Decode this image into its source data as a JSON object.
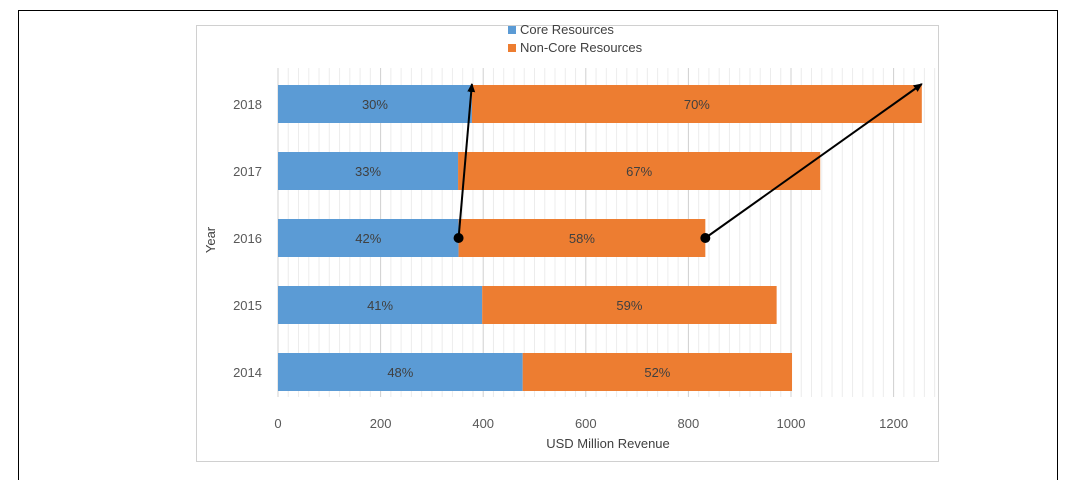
{
  "chart_data": {
    "type": "bar",
    "orientation": "horizontal",
    "stacked": true,
    "categories": [
      "2014",
      "2015",
      "2016",
      "2017",
      "2018"
    ],
    "series": [
      {
        "name": "Core Resources",
        "color": "#5b9bd5",
        "values": [
          477,
          398,
          352,
          351,
          378
        ],
        "labels": [
          "48%",
          "41%",
          "42%",
          "33%",
          "30%"
        ]
      },
      {
        "name": "Non-Core Resources",
        "color": "#ed7d31",
        "values": [
          525,
          574,
          481,
          706,
          877
        ],
        "labels": [
          "52%",
          "59%",
          "58%",
          "67%",
          "70%"
        ]
      }
    ],
    "xlabel": "USD Million Revenue",
    "ylabel": "Year",
    "xlim": [
      0,
      1300
    ],
    "xticks": [
      "0",
      "200",
      "400",
      "600",
      "800",
      "1000",
      "1200"
    ],
    "legend_position": "top",
    "vertical_gridlines": true,
    "annotations": [
      {
        "type": "arrow",
        "from": {
          "category": "2016",
          "x": 352
        },
        "to": {
          "category": "2018",
          "x": 378
        }
      },
      {
        "type": "arrow",
        "from": {
          "category": "2016",
          "x": 833
        },
        "to": {
          "category": "2018",
          "x": 1255
        }
      }
    ]
  }
}
